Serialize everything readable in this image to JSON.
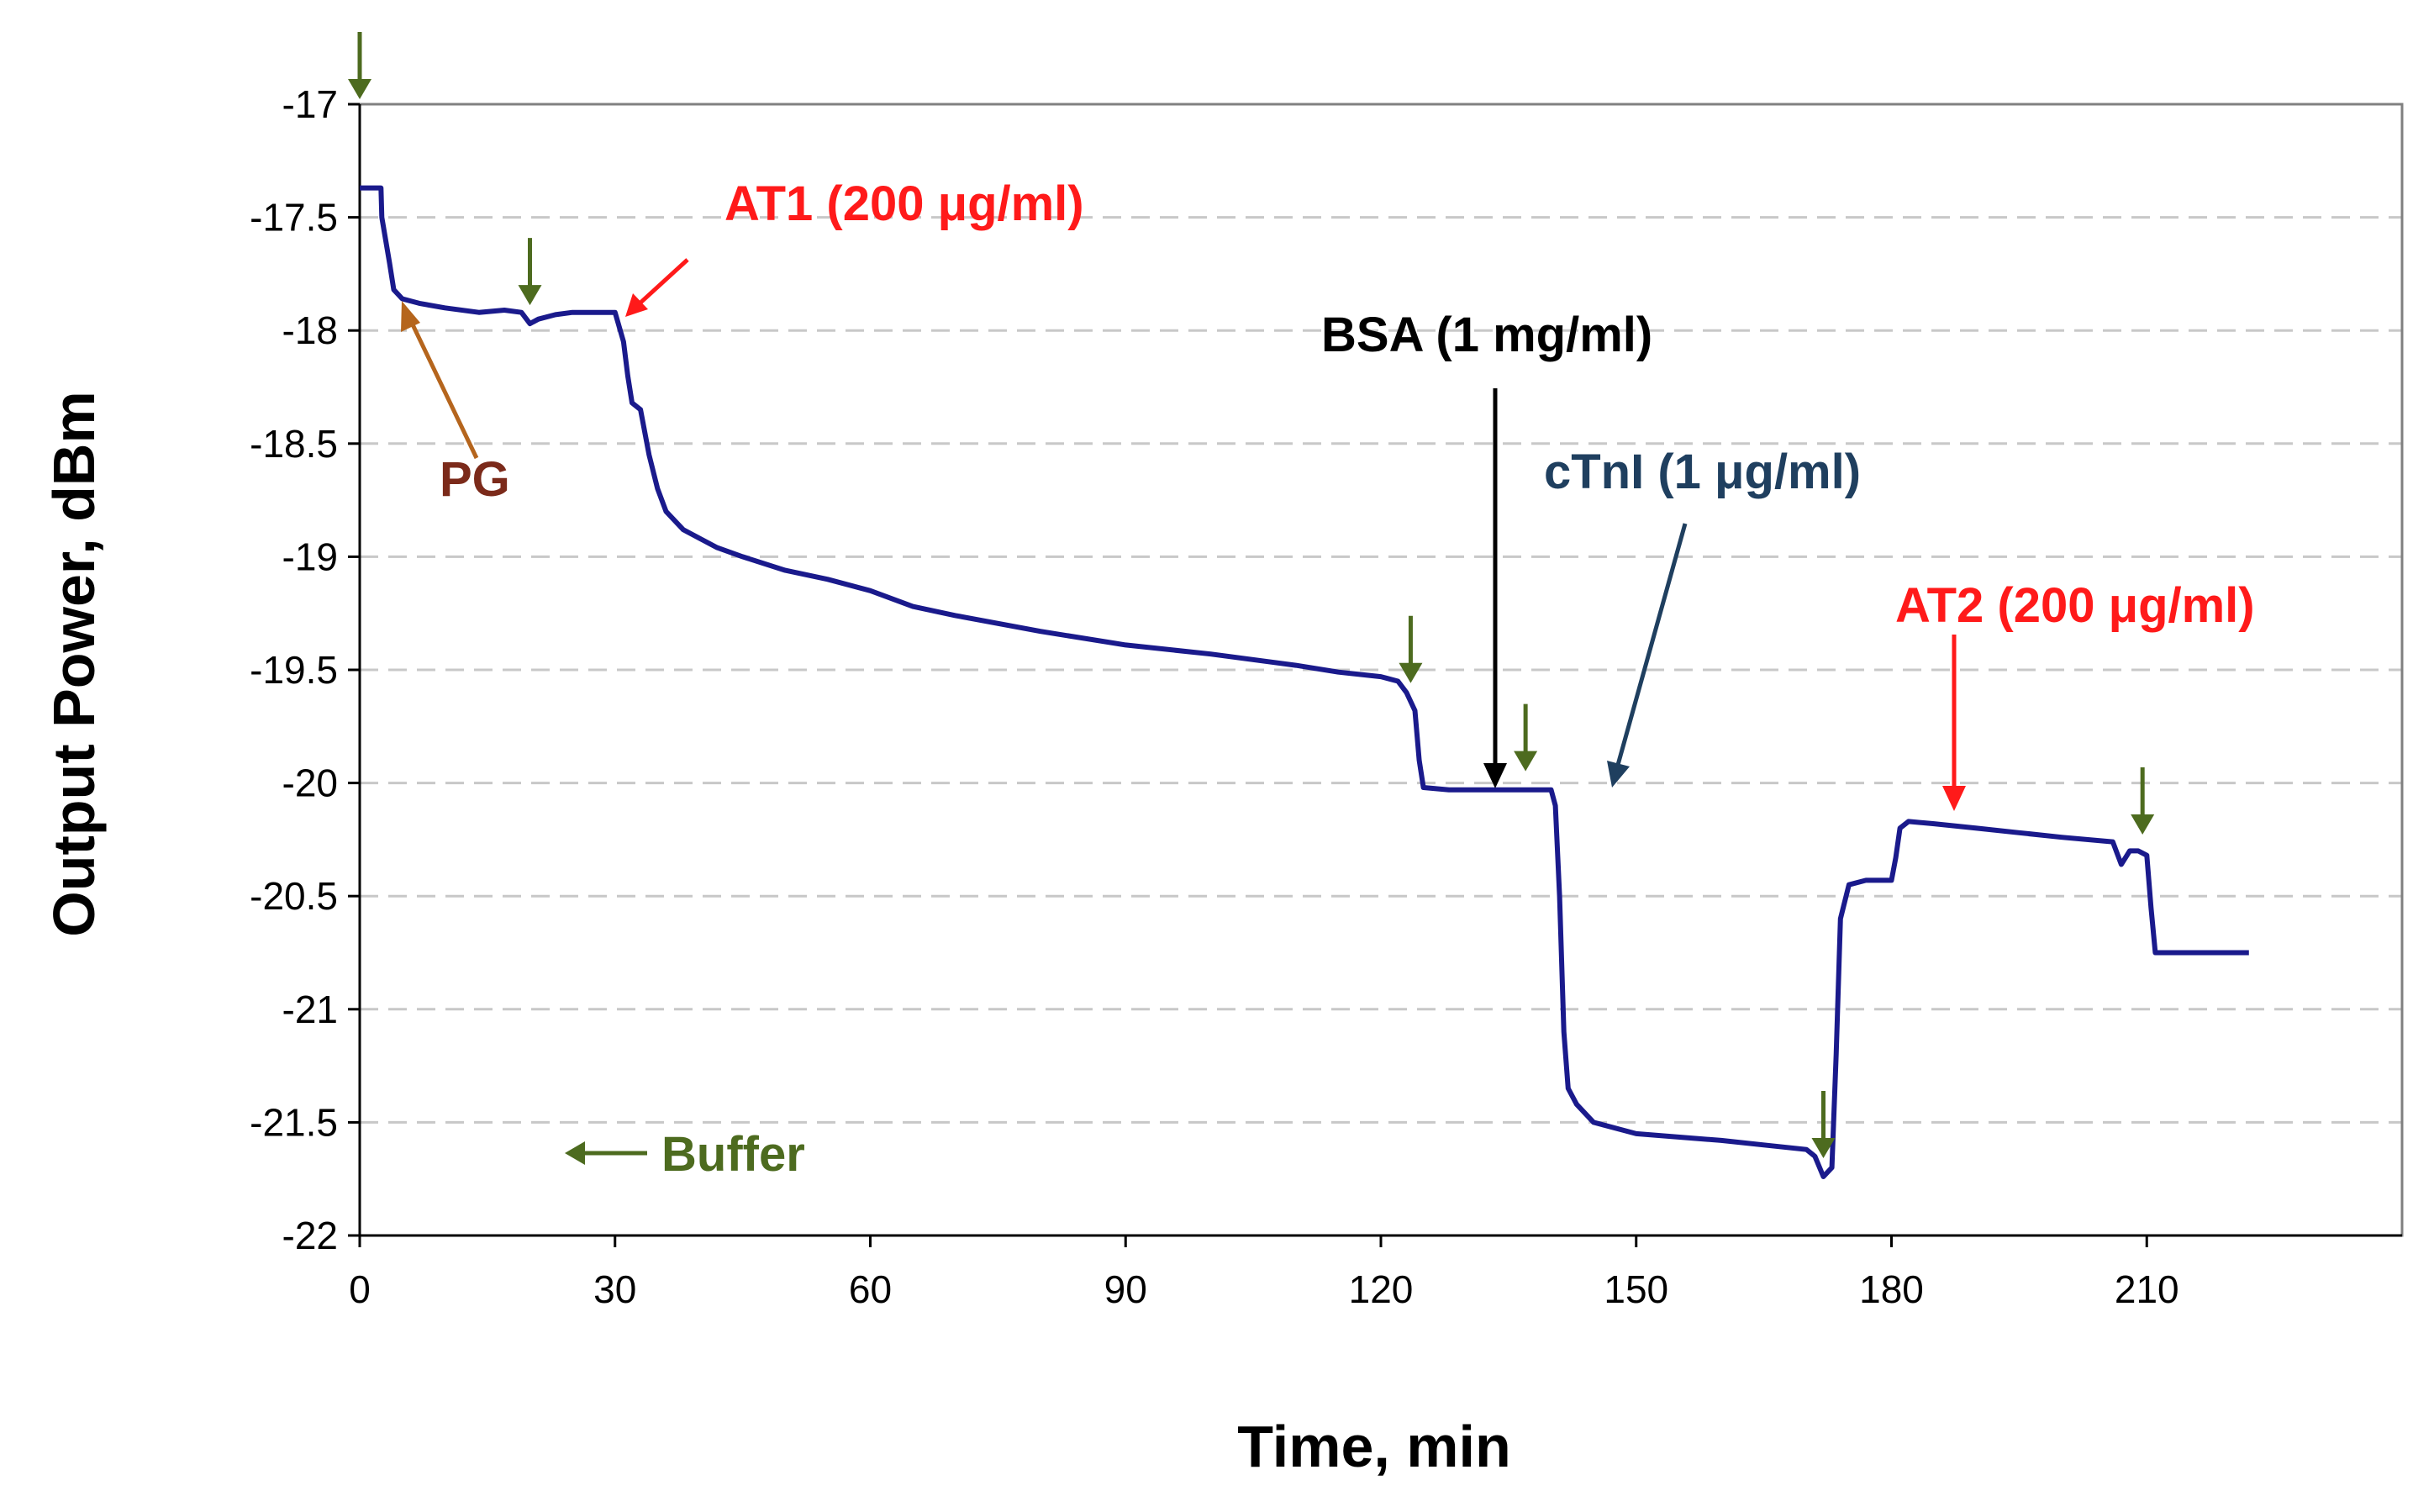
{
  "chart_data": {
    "type": "line",
    "title": "",
    "xlabel": "Time, min",
    "ylabel": "Output Power, dBm",
    "xlim": [
      0,
      240
    ],
    "ylim": [
      -22,
      -17
    ],
    "xticks": [
      0,
      30,
      60,
      90,
      120,
      150,
      180,
      210
    ],
    "yticks": [
      -17,
      -17.5,
      -18,
      -18.5,
      -19,
      -19.5,
      -20,
      -20.5,
      -21,
      -21.5,
      -22
    ],
    "ytick_labels": [
      "-17",
      "-17.5",
      "-18",
      "-18.5",
      "-19",
      "-19.5",
      "-20",
      "-20.5",
      "-21",
      "-21.5",
      "-22"
    ],
    "grid": "horizontal dashed",
    "series": [
      {
        "name": "Output power",
        "color": "#1a1a8c",
        "x": [
          0,
          2.5,
          2.6,
          3.5,
          4.0,
          5.0,
          7.0,
          10,
          14,
          17,
          19,
          20,
          21,
          23,
          25,
          29,
          30,
          31,
          31.5,
          32,
          33,
          34,
          35,
          36,
          38,
          40,
          42,
          45,
          50,
          55,
          60,
          65,
          70,
          80,
          90,
          100,
          110,
          115,
          120,
          122,
          123,
          124,
          124.5,
          125,
          128,
          130,
          135,
          138,
          140,
          140.5,
          141,
          141.5,
          142,
          143,
          145,
          150,
          160,
          165,
          170,
          171,
          172,
          173,
          173.5,
          174,
          175,
          177,
          178,
          179,
          180,
          180.5,
          181,
          182,
          185,
          190,
          195,
          200,
          206,
          207,
          208,
          209,
          210,
          210.5,
          211,
          215,
          222
        ],
        "y": [
          -17.37,
          -17.37,
          -17.5,
          -17.7,
          -17.82,
          -17.86,
          -17.88,
          -17.9,
          -17.92,
          -17.91,
          -17.92,
          -17.97,
          -17.95,
          -17.93,
          -17.92,
          -17.92,
          -17.92,
          -18.05,
          -18.2,
          -18.32,
          -18.35,
          -18.55,
          -18.7,
          -18.8,
          -18.88,
          -18.92,
          -18.96,
          -19.0,
          -19.06,
          -19.1,
          -19.15,
          -19.22,
          -19.26,
          -19.33,
          -19.39,
          -19.43,
          -19.48,
          -19.51,
          -19.53,
          -19.55,
          -19.6,
          -19.68,
          -19.9,
          -20.02,
          -20.03,
          -20.03,
          -20.03,
          -20.03,
          -20.03,
          -20.1,
          -20.5,
          -21.1,
          -21.35,
          -21.42,
          -21.5,
          -21.55,
          -21.58,
          -21.6,
          -21.62,
          -21.65,
          -21.74,
          -21.7,
          -21.2,
          -20.6,
          -20.45,
          -20.43,
          -20.43,
          -20.43,
          -20.43,
          -20.33,
          -20.2,
          -20.17,
          -20.18,
          -20.2,
          -20.22,
          -20.24,
          -20.26,
          -20.36,
          -20.3,
          -20.3,
          -20.32,
          -20.55,
          -20.75,
          -20.75,
          -20.75
        ]
      }
    ],
    "annotations": {
      "buffer_legend": "Buffer",
      "pg": "PG",
      "at1": "AT1 (200 μg/ml)",
      "bsa": "BSA (1 mg/ml)",
      "ctni": "cTnI (1 μg/ml)",
      "at2": "AT2 (200 μg/ml)"
    },
    "buffer_marker_times": [
      0,
      20,
      123.5,
      137,
      172,
      209.5
    ],
    "colors": {
      "line": "#1a1a8c",
      "buffer": "#4d6b1f",
      "pg": "#b5651d",
      "pg_text": "#7b2a1a",
      "at": "#ff1a1a",
      "bsa": "#000000",
      "ctni": "#1f3f5f",
      "grid": "#c8c8c8",
      "frame": "#808080"
    }
  }
}
